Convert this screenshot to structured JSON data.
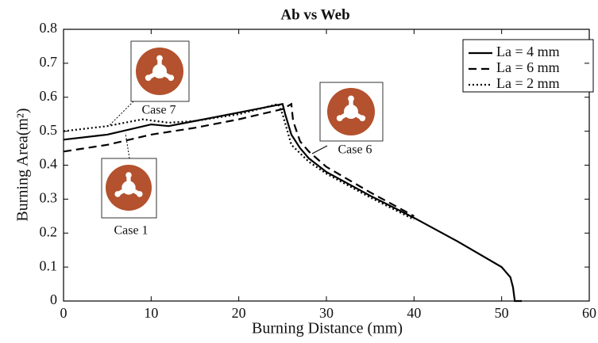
{
  "chart_data": {
    "type": "line",
    "title": "Ab vs Web",
    "x_label": "Burning Distance (mm)",
    "y_label": "Burning Area(m²)",
    "xlim": [
      0,
      60
    ],
    "ylim": [
      0,
      0.8
    ],
    "xticks": [
      0,
      10,
      20,
      30,
      40,
      50,
      60
    ],
    "yticks": [
      0,
      0.1,
      0.2,
      0.3,
      0.4,
      0.5,
      0.6,
      0.7,
      0.8
    ],
    "grid": false,
    "legend": "upper right",
    "series": [
      {
        "name": "La = 4 mm",
        "color": "#000000",
        "dash": "solid",
        "x": [
          0,
          5,
          10,
          12,
          15,
          20,
          24,
          25,
          25.3,
          26,
          27,
          28,
          30,
          35,
          40,
          45,
          50,
          51,
          51.3,
          51.5,
          52.3
        ],
        "values": [
          0.475,
          0.49,
          0.52,
          0.515,
          0.53,
          0.555,
          0.575,
          0.58,
          0.55,
          0.49,
          0.45,
          0.42,
          0.38,
          0.31,
          0.245,
          0.175,
          0.1,
          0.07,
          0.04,
          0,
          0
        ]
      },
      {
        "name": "La = 6 mm",
        "color": "#000000",
        "dash": "dashed",
        "x": [
          0,
          5,
          10,
          15,
          20,
          25,
          26,
          26.2,
          27,
          28,
          30,
          35,
          40
        ],
        "values": [
          0.44,
          0.46,
          0.49,
          0.51,
          0.535,
          0.565,
          0.58,
          0.53,
          0.47,
          0.44,
          0.395,
          0.32,
          0.25
        ]
      },
      {
        "name": "La = 2 mm",
        "color": "#000000",
        "dash": "dotted",
        "x": [
          0,
          5,
          9,
          12,
          15,
          20,
          24.5,
          25,
          26,
          28,
          30,
          35,
          40
        ],
        "values": [
          0.5,
          0.515,
          0.535,
          0.525,
          0.53,
          0.55,
          0.58,
          0.55,
          0.46,
          0.41,
          0.375,
          0.305,
          0.24
        ]
      }
    ],
    "annotations": [
      "Case 7",
      "Case 1",
      "Case 6"
    ]
  }
}
